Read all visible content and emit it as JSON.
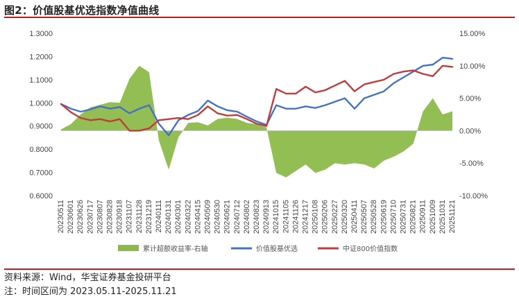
{
  "header": {
    "title": "图2：价值股基优选指数净值曲线"
  },
  "footer": {
    "source": "资料来源：Wind，华宝证券基金投研平台",
    "note": "注：时间区间为 2023.05.11-2025.11.21"
  },
  "colors": {
    "accent_red": "#b22222",
    "series_excess": "#8cba4a",
    "series_value": "#4472c4",
    "series_csi800": "#c23b3b"
  },
  "chart_data": {
    "type": "line",
    "title": "",
    "xlabel": "",
    "ylabel": "",
    "ylim_left": [
      0.6,
      1.3
    ],
    "ylim_right": [
      -10.0,
      15.0
    ],
    "yticks_left": [
      "1.3000",
      "1.2000",
      "1.1000",
      "1.0000",
      "0.9000",
      "0.8000",
      "0.7000",
      "0.6000"
    ],
    "yticks_right": [
      "15.00%",
      "10.00%",
      "5.00%",
      "0.00%",
      "-5.00%",
      "-10.00%"
    ],
    "x_tick_labels": [
      "20230511",
      "20230601",
      "20230626",
      "20230717",
      "20230807",
      "20230828",
      "20230918",
      "20231107",
      "20231128",
      "20231219",
      "20240111",
      "20240131",
      "20240301",
      "20240322",
      "20240415",
      "20240509",
      "20240530",
      "20240621",
      "20240712",
      "20240802",
      "20240823",
      "20240913",
      "20241015",
      "20241105",
      "20241126",
      "20241217",
      "20250108",
      "20250206",
      "20250227",
      "20250320",
      "20250411",
      "20250507",
      "20250528",
      "20250619",
      "20250710",
      "20250731",
      "20250821",
      "20250911",
      "20251009",
      "20251031",
      "20251121"
    ],
    "legend_position": "bottom",
    "grid": false,
    "series": [
      {
        "name": "累计超额收益率-右轴",
        "type": "area",
        "axis": "right",
        "unit": "%",
        "values": [
          0.2,
          1.0,
          2.5,
          3.6,
          4.0,
          4.4,
          4.3,
          8.0,
          10.0,
          9.0,
          -1.5,
          -6.0,
          -1.0,
          1.2,
          1.3,
          0.8,
          1.8,
          2.0,
          1.8,
          1.2,
          1.0,
          0.5,
          -6.5,
          -7.2,
          -6.2,
          -5.2,
          -6.5,
          -6.0,
          -5.0,
          -5.2,
          -5.0,
          -5.2,
          -5.8,
          -4.6,
          -4.0,
          -3.2,
          -2.0,
          3.0,
          5.0,
          2.5,
          3.0
        ]
      },
      {
        "name": "价值股基优选",
        "type": "line",
        "axis": "left",
        "values": [
          0.995,
          0.975,
          0.962,
          0.972,
          0.985,
          0.975,
          0.982,
          0.955,
          0.975,
          0.99,
          0.91,
          0.86,
          0.925,
          0.948,
          0.965,
          1.01,
          0.985,
          0.968,
          0.962,
          0.94,
          0.92,
          0.905,
          0.99,
          0.975,
          0.975,
          0.985,
          0.978,
          0.99,
          1.005,
          1.02,
          0.975,
          1.02,
          1.035,
          1.05,
          1.085,
          1.11,
          1.135,
          1.16,
          1.165,
          1.195,
          1.19
        ]
      },
      {
        "name": "中证800价值指数",
        "type": "line",
        "axis": "left",
        "values": [
          0.995,
          0.96,
          0.935,
          0.925,
          0.93,
          0.92,
          0.93,
          0.88,
          0.88,
          0.89,
          0.925,
          0.93,
          0.935,
          0.93,
          0.948,
          0.985,
          0.955,
          0.945,
          0.948,
          0.93,
          0.91,
          0.9,
          1.06,
          1.04,
          1.04,
          1.07,
          1.045,
          1.055,
          1.075,
          1.095,
          1.05,
          1.08,
          1.09,
          1.1,
          1.125,
          1.135,
          1.14,
          1.125,
          1.115,
          1.16,
          1.155
        ]
      }
    ]
  }
}
